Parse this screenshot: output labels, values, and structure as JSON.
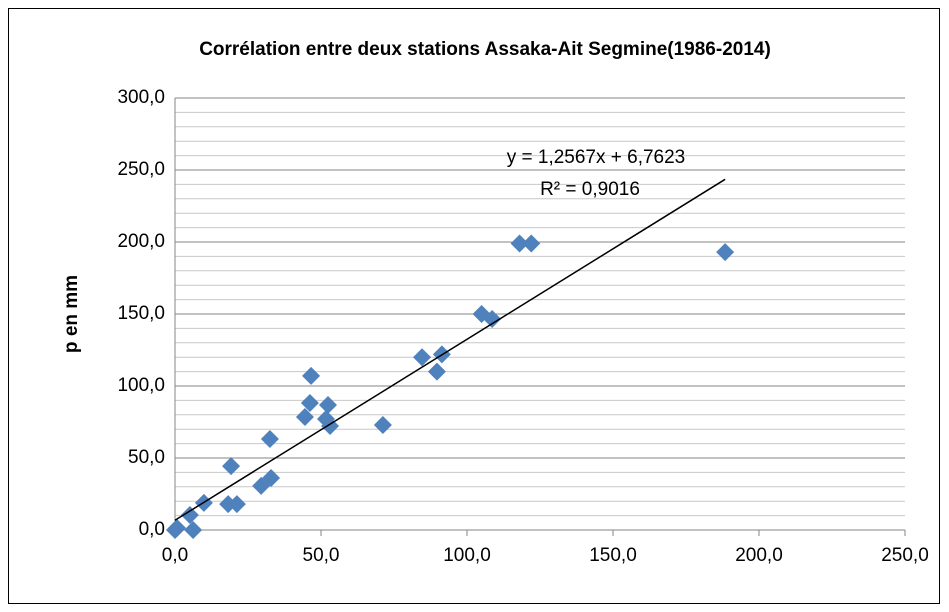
{
  "chart_data": {
    "type": "scatter",
    "title": "Corrélation entre deux stations Assaka-Ait Segmine(1986-2014)",
    "y_label": "p en mm",
    "color": "#4f81bd",
    "grid": true,
    "xlim": [
      0,
      250
    ],
    "ylim": [
      0,
      300
    ],
    "xticks": [
      {
        "value": 0,
        "label": "0,0"
      },
      {
        "value": 50,
        "label": "50,0"
      },
      {
        "value": 100,
        "label": "100,0"
      },
      {
        "value": 150,
        "label": "150,0"
      },
      {
        "value": 200,
        "label": "200,0"
      },
      {
        "value": 250,
        "label": "250,0"
      }
    ],
    "yticks": [
      {
        "value": 0,
        "label": "0,0"
      },
      {
        "value": 50,
        "label": "50,0"
      },
      {
        "value": 100,
        "label": "100,0"
      },
      {
        "value": 150,
        "label": "150,0"
      },
      {
        "value": 200,
        "label": "200,0"
      },
      {
        "value": 250,
        "label": "250,0"
      },
      {
        "value": 300,
        "label": "300,0"
      }
    ],
    "x": [
      0,
      0.7,
      6.2,
      5.1,
      9.9,
      18.2,
      21.2,
      19.2,
      29.5,
      32.9,
      32.5,
      44.5,
      46.2,
      46.6,
      52.4,
      51.7,
      53.1,
      71.2,
      84.6,
      89.7,
      91.4,
      105,
      108.6,
      118,
      122,
      188.4
    ],
    "values": [
      0,
      1.4,
      0,
      10.4,
      18.8,
      18,
      18,
      44.4,
      30.6,
      36.1,
      63.2,
      78.5,
      88.2,
      107,
      86.8,
      77.1,
      72.2,
      72.9,
      120,
      110,
      122,
      150,
      146.5,
      199,
      199,
      193
    ],
    "trendline": {
      "slope": 1.2567,
      "intercept": 6.7623,
      "label": "y = 1,2567x + 6,7623",
      "r2_label": "R² = 0,9016"
    }
  }
}
